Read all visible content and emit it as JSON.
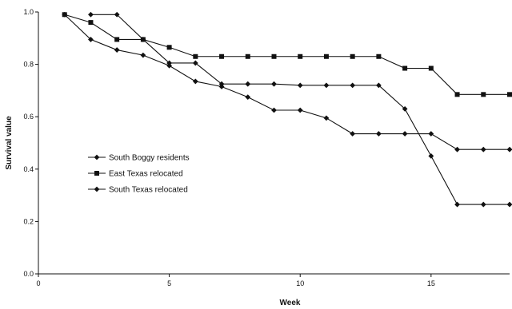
{
  "chart_data": {
    "type": "line",
    "xlabel": "Week",
    "ylabel": "Survival value",
    "xlim": [
      0,
      18
    ],
    "ylim": [
      0.0,
      1.0
    ],
    "xticks": [
      0,
      5,
      10,
      15
    ],
    "yticks": [
      0.0,
      0.2,
      0.4,
      0.6,
      0.8,
      1.0
    ],
    "ytick_labels": [
      "0.0",
      "0.2",
      "0.4",
      "0.6",
      "0.8",
      "1.0"
    ],
    "grid": false,
    "legend_position": "center-left",
    "colors": {
      "line": "#111111",
      "axis": "#111111"
    },
    "series": [
      {
        "name": "South Boggy residents",
        "marker": "diamond",
        "x": [
          1,
          2,
          3,
          4,
          5,
          6,
          7,
          8,
          9,
          10,
          11,
          12,
          13,
          14,
          15,
          16,
          17,
          18
        ],
        "y": [
          0.99,
          0.895,
          0.855,
          0.835,
          0.795,
          0.735,
          0.715,
          0.675,
          0.625,
          0.625,
          0.595,
          0.535,
          0.535,
          0.535,
          0.535,
          0.475,
          0.475,
          0.475
        ]
      },
      {
        "name": "East Texas relocated",
        "marker": "square",
        "x": [
          1,
          2,
          3,
          4,
          5,
          6,
          7,
          8,
          9,
          10,
          11,
          12,
          13,
          14,
          15,
          16,
          17,
          18
        ],
        "y": [
          0.99,
          0.96,
          0.895,
          0.895,
          0.865,
          0.83,
          0.83,
          0.83,
          0.83,
          0.83,
          0.83,
          0.83,
          0.83,
          0.785,
          0.785,
          0.685,
          0.685,
          0.685
        ]
      },
      {
        "name": "South Texas relocated",
        "marker": "diamond",
        "x": [
          2,
          3,
          4,
          5,
          6,
          7,
          8,
          9,
          10,
          11,
          12,
          13,
          14,
          15,
          16,
          17,
          18
        ],
        "y": [
          0.99,
          0.99,
          0.895,
          0.805,
          0.805,
          0.725,
          0.725,
          0.725,
          0.72,
          0.72,
          0.72,
          0.72,
          0.63,
          0.45,
          0.265,
          0.265,
          0.265
        ]
      }
    ]
  }
}
